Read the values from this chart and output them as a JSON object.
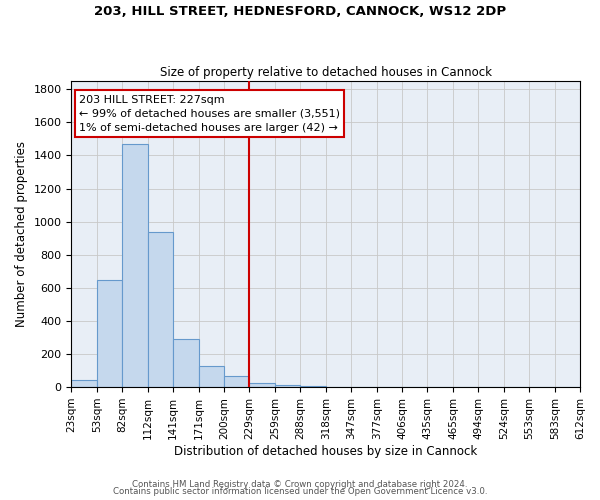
{
  "title1": "203, HILL STREET, HEDNESFORD, CANNOCK, WS12 2DP",
  "title2": "Size of property relative to detached houses in Cannock",
  "xlabel": "Distribution of detached houses by size in Cannock",
  "ylabel": "Number of detached properties",
  "bar_color": "#c5d8ed",
  "bar_edge_color": "#6699cc",
  "plot_bg_color": "#e8eef6",
  "fig_bg_color": "#ffffff",
  "grid_color": "#c8c8c8",
  "bin_edges": [
    23,
    53,
    82,
    112,
    141,
    171,
    200,
    229,
    259,
    288,
    318,
    347,
    377,
    406,
    435,
    465,
    494,
    524,
    553,
    583,
    612
  ],
  "bin_labels": [
    "23sqm",
    "53sqm",
    "82sqm",
    "112sqm",
    "141sqm",
    "171sqm",
    "200sqm",
    "229sqm",
    "259sqm",
    "288sqm",
    "318sqm",
    "347sqm",
    "377sqm",
    "406sqm",
    "435sqm",
    "465sqm",
    "494sqm",
    "524sqm",
    "553sqm",
    "583sqm",
    "612sqm"
  ],
  "bar_heights": [
    40,
    650,
    1470,
    940,
    290,
    130,
    70,
    25,
    15,
    5,
    2,
    2,
    1,
    0,
    0,
    0,
    0,
    0,
    0,
    0
  ],
  "vline_x": 229,
  "vline_color": "#cc0000",
  "annot_line1": "203 HILL STREET: 227sqm",
  "annot_line2": "← 99% of detached houses are smaller (3,551)",
  "annot_line3": "1% of semi-detached houses are larger (42) →",
  "annotation_box_color": "#ffffff",
  "annotation_box_edge_color": "#cc0000",
  "footer1": "Contains HM Land Registry data © Crown copyright and database right 2024.",
  "footer2": "Contains public sector information licensed under the Open Government Licence v3.0.",
  "ylim": [
    0,
    1850
  ],
  "yticks": [
    0,
    200,
    400,
    600,
    800,
    1000,
    1200,
    1400,
    1600,
    1800
  ]
}
